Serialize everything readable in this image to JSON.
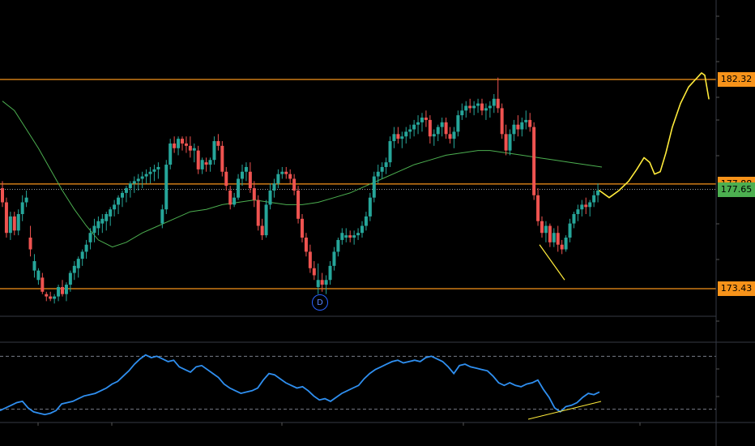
{
  "price_tags": [
    {
      "label": "182.32",
      "bg": "#f7931a",
      "fg": "#000000"
    },
    {
      "label": "177.88",
      "bg": "#f7931a",
      "fg": "#000000"
    },
    {
      "label": "177.65",
      "bg": "#4caf50",
      "fg": "#000000"
    },
    {
      "label": "173.43",
      "bg": "#f7931a",
      "fg": "#000000"
    }
  ],
  "event_marker": {
    "label": "D"
  },
  "colors": {
    "up": "#26a69a",
    "down": "#ef5350",
    "level": "#f7931a",
    "ma": "#4caf50",
    "rsi": "#2f8ff0",
    "annotation": "#ffeb3b",
    "current": "#4caf50",
    "grid": "#2a2e39"
  },
  "chart_data": [
    {
      "type": "candlestick",
      "title": "",
      "horizontal_levels": [
        182.32,
        177.88,
        173.43
      ],
      "current_price": 177.65,
      "ylim": [
        172.0,
        186.0
      ],
      "candles": [
        [
          177.7,
          178.0,
          176.9,
          177.1
        ],
        [
          177.1,
          177.3,
          175.6,
          175.8
        ],
        [
          175.8,
          176.7,
          175.5,
          176.5
        ],
        [
          176.5,
          176.7,
          175.7,
          175.9
        ],
        [
          175.9,
          176.8,
          175.7,
          176.6
        ],
        [
          176.6,
          177.4,
          176.3,
          177.1
        ],
        [
          177.1,
          177.6,
          176.9,
          177.3
        ],
        [
          175.6,
          176.1,
          174.8,
          175.1
        ],
        [
          174.2,
          174.9,
          173.9,
          174.6
        ],
        [
          173.8,
          174.3,
          173.6,
          174.2
        ],
        [
          173.9,
          174.1,
          173.2,
          173.3
        ],
        [
          173.2,
          173.3,
          172.9,
          173.1
        ],
        [
          173.1,
          173.3,
          172.9,
          173.0
        ],
        [
          173.0,
          173.2,
          172.8,
          173.1
        ],
        [
          173.1,
          173.6,
          172.9,
          173.5
        ],
        [
          173.5,
          173.8,
          173.1,
          173.2
        ],
        [
          173.2,
          173.7,
          172.9,
          173.6
        ],
        [
          173.6,
          174.2,
          173.3,
          174.1
        ],
        [
          174.1,
          174.6,
          173.8,
          174.4
        ],
        [
          174.3,
          174.8,
          173.9,
          174.7
        ],
        [
          174.7,
          175.1,
          174.4,
          175.0
        ],
        [
          175.0,
          175.5,
          174.7,
          175.3
        ],
        [
          175.4,
          176.0,
          175.1,
          175.8
        ],
        [
          175.8,
          176.4,
          175.4,
          176.1
        ],
        [
          176.0,
          176.5,
          175.7,
          176.3
        ],
        [
          176.2,
          176.6,
          175.8,
          176.4
        ],
        [
          176.3,
          176.7,
          175.9,
          176.6
        ],
        [
          176.5,
          176.9,
          176.1,
          176.8
        ],
        [
          176.8,
          177.2,
          176.5,
          177.0
        ],
        [
          177.0,
          177.4,
          176.6,
          177.3
        ],
        [
          177.3,
          177.6,
          176.9,
          177.5
        ],
        [
          177.5,
          177.8,
          177.1,
          177.7
        ],
        [
          177.7,
          178.0,
          177.3,
          177.9
        ],
        [
          177.9,
          178.2,
          177.5,
          178.0
        ],
        [
          178.0,
          178.3,
          177.6,
          178.1
        ],
        [
          178.1,
          178.4,
          177.7,
          178.2
        ],
        [
          178.2,
          178.5,
          177.9,
          178.3
        ],
        [
          178.3,
          178.6,
          177.9,
          178.4
        ],
        [
          178.4,
          178.7,
          178.0,
          178.5
        ],
        [
          178.5,
          178.8,
          178.1,
          178.6
        ],
        [
          176.2,
          177.0,
          176.0,
          176.8
        ],
        [
          176.8,
          178.9,
          176.6,
          178.7
        ],
        [
          178.7,
          179.8,
          178.5,
          179.6
        ],
        [
          179.6,
          179.9,
          179.2,
          179.4
        ],
        [
          179.4,
          179.9,
          179.1,
          179.8
        ],
        [
          179.8,
          179.9,
          179.3,
          179.6
        ],
        [
          179.6,
          179.9,
          179.2,
          179.5
        ],
        [
          179.5,
          179.9,
          179.0,
          179.3
        ],
        [
          179.3,
          179.6,
          178.8,
          179.4
        ],
        [
          179.3,
          179.5,
          178.3,
          178.5
        ],
        [
          178.5,
          179.0,
          178.3,
          178.9
        ],
        [
          178.8,
          179.0,
          178.4,
          178.7
        ],
        [
          178.7,
          179.0,
          178.4,
          178.9
        ],
        [
          178.9,
          179.9,
          178.7,
          179.7
        ],
        [
          179.7,
          180.0,
          179.3,
          179.5
        ],
        [
          179.5,
          179.7,
          178.2,
          178.4
        ],
        [
          178.4,
          178.6,
          177.6,
          177.8
        ],
        [
          177.6,
          177.8,
          176.8,
          177.0
        ],
        [
          177.0,
          177.5,
          176.9,
          177.3
        ],
        [
          177.3,
          178.3,
          177.2,
          178.1
        ],
        [
          178.1,
          178.7,
          177.8,
          178.4
        ],
        [
          178.4,
          178.8,
          178.0,
          178.6
        ],
        [
          178.4,
          178.8,
          177.5,
          177.7
        ],
        [
          177.7,
          178.0,
          176.9,
          177.2
        ],
        [
          177.2,
          177.4,
          175.9,
          176.1
        ],
        [
          176.1,
          176.4,
          175.5,
          175.7
        ],
        [
          175.7,
          177.2,
          175.6,
          177.0
        ],
        [
          177.0,
          177.9,
          176.8,
          177.6
        ],
        [
          177.6,
          178.1,
          177.3,
          177.9
        ],
        [
          177.9,
          178.5,
          177.7,
          178.3
        ],
        [
          178.3,
          178.6,
          178.1,
          178.4
        ],
        [
          178.4,
          178.6,
          178.1,
          178.3
        ],
        [
          178.3,
          178.5,
          177.9,
          178.1
        ],
        [
          178.1,
          178.3,
          177.4,
          177.6
        ],
        [
          177.6,
          177.8,
          176.2,
          176.4
        ],
        [
          176.4,
          176.6,
          175.4,
          175.6
        ],
        [
          175.6,
          175.8,
          174.8,
          175.0
        ],
        [
          175.0,
          175.3,
          174.1,
          174.3
        ],
        [
          174.3,
          174.6,
          173.8,
          174.0
        ],
        [
          173.5,
          174.5,
          173.2,
          173.8
        ],
        [
          173.8,
          174.1,
          173.3,
          173.6
        ],
        [
          173.6,
          174.0,
          173.2,
          173.8
        ],
        [
          173.8,
          174.6,
          173.6,
          174.4
        ],
        [
          174.4,
          175.2,
          174.2,
          175.0
        ],
        [
          175.0,
          175.6,
          174.8,
          175.5
        ],
        [
          175.5,
          176.0,
          175.3,
          175.8
        ],
        [
          175.6,
          176.0,
          175.4,
          175.7
        ],
        [
          175.7,
          175.9,
          175.4,
          175.6
        ],
        [
          175.6,
          175.9,
          175.3,
          175.7
        ],
        [
          175.7,
          176.0,
          175.5,
          175.8
        ],
        [
          175.8,
          176.3,
          175.6,
          176.1
        ],
        [
          176.1,
          176.7,
          175.9,
          176.5
        ],
        [
          176.5,
          177.5,
          176.3,
          177.3
        ],
        [
          177.3,
          178.4,
          177.1,
          178.2
        ],
        [
          178.2,
          178.7,
          177.9,
          178.4
        ],
        [
          178.4,
          178.8,
          178.1,
          178.6
        ],
        [
          178.6,
          179.0,
          178.3,
          178.8
        ],
        [
          178.8,
          179.9,
          178.6,
          179.7
        ],
        [
          179.7,
          180.3,
          179.4,
          180.0
        ],
        [
          180.0,
          180.3,
          179.6,
          179.8
        ],
        [
          179.8,
          180.1,
          179.4,
          179.9
        ],
        [
          179.9,
          180.3,
          179.6,
          180.1
        ],
        [
          180.1,
          180.4,
          179.8,
          180.2
        ],
        [
          180.2,
          180.6,
          179.9,
          180.4
        ],
        [
          180.4,
          180.8,
          180.0,
          180.5
        ],
        [
          180.5,
          180.9,
          180.1,
          180.7
        ],
        [
          180.7,
          181.0,
          180.3,
          180.6
        ],
        [
          180.6,
          180.8,
          179.6,
          179.9
        ],
        [
          179.9,
          180.2,
          179.5,
          180.0
        ],
        [
          180.0,
          180.4,
          179.7,
          180.3
        ],
        [
          180.3,
          180.7,
          179.9,
          180.5
        ],
        [
          180.5,
          180.7,
          179.8,
          180.0
        ],
        [
          180.0,
          180.3,
          179.6,
          179.8
        ],
        [
          179.8,
          180.3,
          179.4,
          180.1
        ],
        [
          180.1,
          181.0,
          179.9,
          180.8
        ],
        [
          180.8,
          181.3,
          180.6,
          181.0
        ],
        [
          181.0,
          181.4,
          180.7,
          181.2
        ],
        [
          181.2,
          181.5,
          180.9,
          181.1
        ],
        [
          181.1,
          181.4,
          180.8,
          181.2
        ],
        [
          181.2,
          181.5,
          180.9,
          181.3
        ],
        [
          181.3,
          181.5,
          180.8,
          181.0
        ],
        [
          181.0,
          181.3,
          180.6,
          181.1
        ],
        [
          181.1,
          181.4,
          180.7,
          181.2
        ],
        [
          181.2,
          181.7,
          180.9,
          181.5
        ],
        [
          181.5,
          182.4,
          180.9,
          181.1
        ],
        [
          181.1,
          181.3,
          179.8,
          180.0
        ],
        [
          180.0,
          180.4,
          179.1,
          179.3
        ],
        [
          179.3,
          180.2,
          179.1,
          180.0
        ],
        [
          180.0,
          180.6,
          179.7,
          180.4
        ],
        [
          180.4,
          180.8,
          179.9,
          180.2
        ],
        [
          180.2,
          180.7,
          179.9,
          180.5
        ],
        [
          180.5,
          181.0,
          180.2,
          180.6
        ],
        [
          180.6,
          180.9,
          180.1,
          180.3
        ],
        [
          180.3,
          180.5,
          177.2,
          177.4
        ],
        [
          177.4,
          177.7,
          176.1,
          176.3
        ],
        [
          176.3,
          176.5,
          175.6,
          175.8
        ],
        [
          175.8,
          176.3,
          175.4,
          176.1
        ],
        [
          176.1,
          176.2,
          175.2,
          175.4
        ],
        [
          175.4,
          176.0,
          175.2,
          175.8
        ],
        [
          175.8,
          176.1,
          175.0,
          175.3
        ],
        [
          175.3,
          175.5,
          174.9,
          175.1
        ],
        [
          175.1,
          175.7,
          175.0,
          175.6
        ],
        [
          175.6,
          176.4,
          175.4,
          176.2
        ],
        [
          176.2,
          176.7,
          176.0,
          176.6
        ],
        [
          176.6,
          177.0,
          176.3,
          176.8
        ],
        [
          176.8,
          177.2,
          176.5,
          177.0
        ],
        [
          177.0,
          177.3,
          176.6,
          176.9
        ],
        [
          176.9,
          177.2,
          176.5,
          177.1
        ],
        [
          177.1,
          177.6,
          176.9,
          177.4
        ],
        [
          177.4,
          177.9,
          177.1,
          177.6
        ]
      ],
      "moving_average": [
        [
          0,
          181.4
        ],
        [
          6,
          181.0
        ],
        [
          12,
          180.2
        ],
        [
          18,
          179.4
        ],
        [
          24,
          178.5
        ],
        [
          30,
          177.6
        ],
        [
          36,
          176.8
        ],
        [
          42,
          176.1
        ],
        [
          48,
          175.5
        ],
        [
          55,
          175.2
        ],
        [
          62,
          175.4
        ],
        [
          70,
          175.8
        ],
        [
          78,
          176.1
        ],
        [
          86,
          176.4
        ],
        [
          94,
          176.7
        ],
        [
          102,
          176.8
        ],
        [
          110,
          177.0
        ],
        [
          118,
          177.1
        ],
        [
          126,
          177.2
        ],
        [
          134,
          177.1
        ],
        [
          142,
          177.0
        ],
        [
          150,
          177.0
        ],
        [
          158,
          177.1
        ],
        [
          166,
          177.3
        ],
        [
          174,
          177.5
        ],
        [
          182,
          177.8
        ],
        [
          190,
          178.1
        ],
        [
          198,
          178.4
        ],
        [
          206,
          178.7
        ],
        [
          214,
          178.9
        ],
        [
          222,
          179.1
        ],
        [
          230,
          179.2
        ],
        [
          238,
          179.3
        ],
        [
          244,
          179.3
        ],
        [
          252,
          179.2
        ],
        [
          260,
          179.1
        ],
        [
          268,
          179.0
        ],
        [
          276,
          178.9
        ],
        [
          284,
          178.8
        ],
        [
          292,
          178.7
        ],
        [
          300,
          178.6
        ]
      ],
      "annotation_path": [
        [
          740,
          177.6
        ],
        [
          752,
          177.3
        ],
        [
          764,
          177.6
        ],
        [
          776,
          178.0
        ],
        [
          786,
          178.5
        ],
        [
          795,
          179.0
        ],
        [
          802,
          178.8
        ],
        [
          808,
          178.3
        ],
        [
          815,
          178.4
        ],
        [
          822,
          179.2
        ],
        [
          830,
          180.3
        ],
        [
          840,
          181.3
        ],
        [
          850,
          182.0
        ],
        [
          858,
          182.3
        ],
        [
          866,
          182.6
        ],
        [
          870,
          182.5
        ],
        [
          875,
          181.5
        ]
      ],
      "trendline": [
        [
          666,
          175.3
        ],
        [
          697,
          173.8
        ]
      ]
    },
    {
      "type": "line",
      "title": "",
      "name": "",
      "levels": [
        70,
        30
      ],
      "ylim": [
        20,
        80
      ],
      "values": [
        29,
        31,
        33,
        35,
        36,
        31,
        28,
        27,
        26,
        27,
        29,
        34,
        35,
        36,
        38,
        40,
        41,
        42,
        44,
        46,
        49,
        51,
        55,
        59,
        64,
        68,
        71,
        69,
        70,
        68,
        66,
        67,
        62,
        60,
        58,
        62,
        63,
        60,
        57,
        54,
        49,
        46,
        44,
        42,
        43,
        44,
        46,
        52,
        57,
        56,
        53,
        50,
        48,
        46,
        47,
        44,
        40,
        37,
        38,
        36,
        39,
        42,
        44,
        46,
        48,
        53,
        57,
        60,
        62,
        64,
        66,
        67,
        65,
        66,
        67,
        66,
        69,
        70,
        68,
        66,
        62,
        57,
        63,
        64,
        62,
        61,
        60,
        59,
        55,
        50,
        48,
        50,
        48,
        47,
        49,
        50,
        52,
        45,
        39,
        31,
        28,
        32,
        33,
        35,
        39,
        42,
        41,
        43
      ]
    }
  ]
}
